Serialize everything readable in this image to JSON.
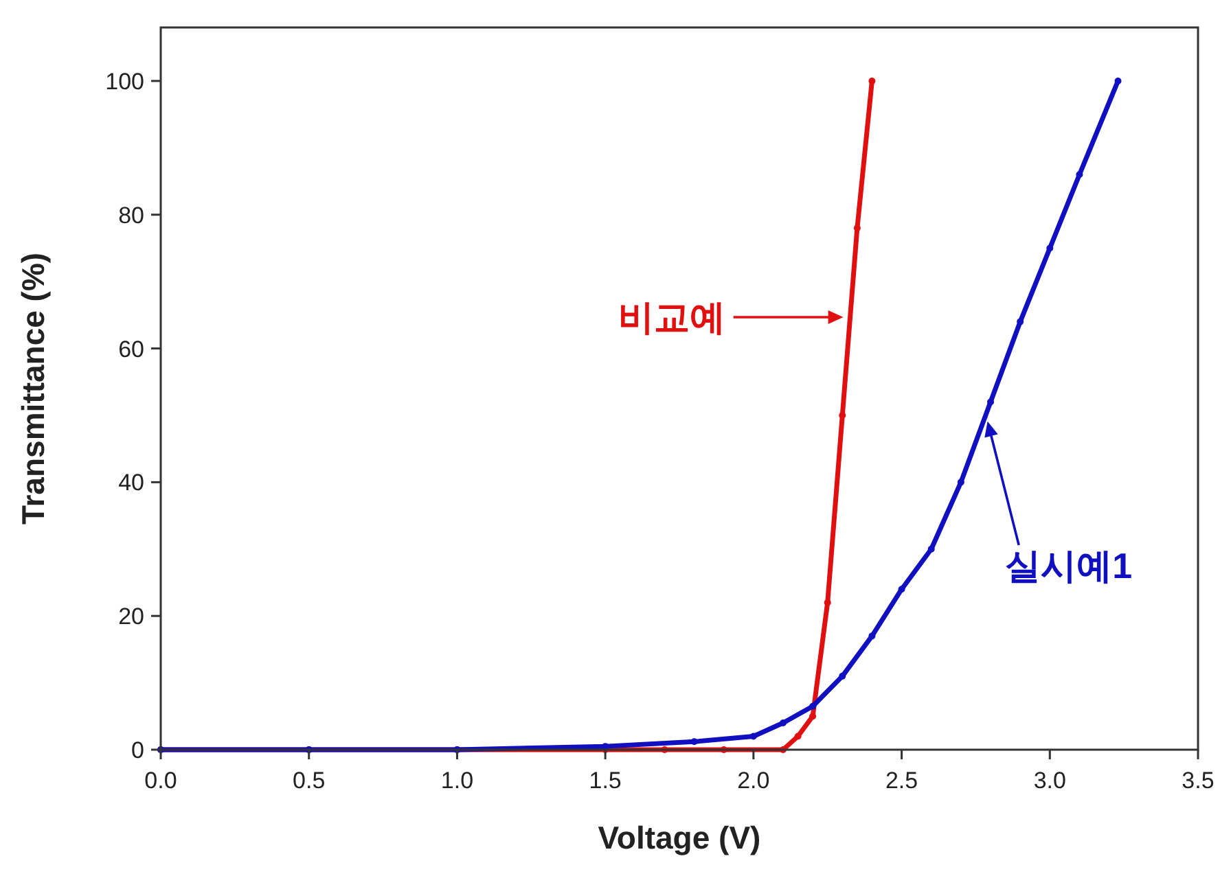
{
  "chart_data": {
    "type": "line",
    "xlabel": "Voltage (V)",
    "ylabel": "Transmittance (%)",
    "xlim": [
      0,
      3.5
    ],
    "ylim": [
      0,
      108
    ],
    "xticks": [
      {
        "value": 0,
        "label": "0.0"
      },
      0.5,
      {
        "value": 1,
        "label": "1.0"
      },
      1.5,
      {
        "value": 2,
        "label": "2.0"
      },
      2.5,
      {
        "value": 3,
        "label": "3.0"
      },
      3.5
    ],
    "yticks": [
      0,
      20,
      40,
      60,
      80,
      100
    ],
    "grid": false,
    "marker": "circle",
    "line_style": "solid",
    "series": [
      {
        "color": "#e01010",
        "x": [
          0,
          0.5,
          1.0,
          1.5,
          1.7,
          1.9,
          2.1,
          2.15,
          2.2,
          2.25,
          2.3,
          2.35,
          2.4
        ],
        "values": [
          0,
          0,
          0,
          0,
          0,
          0,
          0,
          2,
          5,
          22,
          50,
          78,
          100
        ]
      },
      {
        "color": "#1010c0",
        "x": [
          0,
          0.5,
          1.0,
          1.5,
          1.8,
          2.0,
          2.1,
          2.2,
          2.3,
          2.4,
          2.5,
          2.6,
          2.7,
          2.8,
          2.9,
          3.0,
          3.1,
          3.23
        ],
        "values": [
          0,
          0,
          0,
          0.5,
          1.2,
          2,
          4,
          6.5,
          11,
          17,
          24,
          30,
          40,
          52,
          64,
          75,
          86,
          100
        ]
      }
    ],
    "annotations": [
      "비교예",
      "실시예1"
    ]
  }
}
